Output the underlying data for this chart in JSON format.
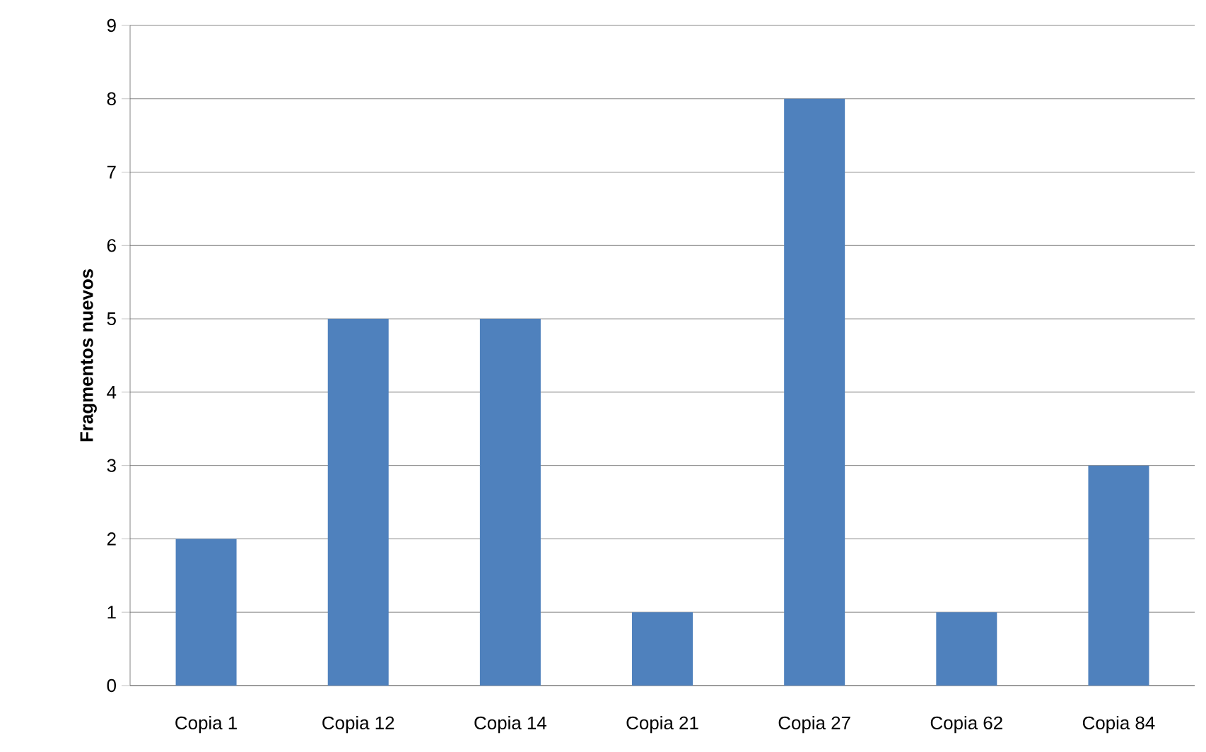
{
  "chart_data": {
    "type": "bar",
    "ylabel": "Fragmentos nuevos",
    "categories": [
      "Copia 1",
      "Copia 12",
      "Copia 14",
      "Copia 21",
      "Copia 27",
      "Copia 62",
      "Copia 84"
    ],
    "values": [
      2,
      5,
      5,
      1,
      8,
      1,
      3
    ],
    "color": "#4f81bd",
    "ylim": [
      0,
      9
    ],
    "yticks": [
      0,
      1,
      2,
      3,
      4,
      5,
      6,
      7,
      8,
      9
    ],
    "grid": "y"
  }
}
